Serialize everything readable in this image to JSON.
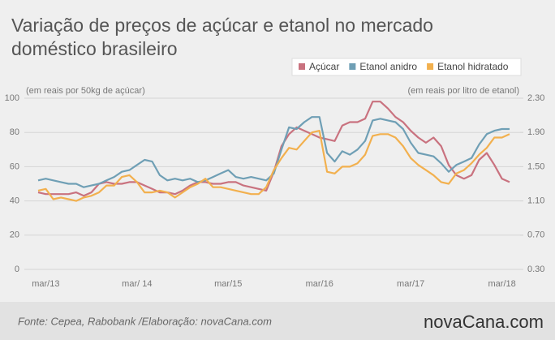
{
  "chart_data": {
    "type": "line",
    "title": [
      "Variação de preços de açúcar e etanol no mercado",
      "doméstico brasileiro"
    ],
    "ylabel": "(em reais por 50kg de açúcar)",
    "y2label": "(em reais por litro de etanol)",
    "source": "Fonte: Cepea, Rabobank /Elaboração: novaCana.com",
    "logo": "novaCana.com",
    "legend": "top-right",
    "grid": true,
    "categories": [
      null,
      "mar/13",
      null,
      null,
      null,
      null,
      null,
      null,
      null,
      null,
      null,
      null,
      null,
      "mar/ 14",
      null,
      null,
      null,
      null,
      null,
      null,
      null,
      null,
      null,
      null,
      null,
      "mar/15",
      null,
      null,
      null,
      null,
      null,
      null,
      null,
      null,
      null,
      null,
      null,
      "mar/16",
      null,
      null,
      null,
      null,
      null,
      null,
      null,
      null,
      null,
      null,
      null,
      "mar/17",
      null,
      null,
      null,
      null,
      null,
      null,
      null,
      null,
      null,
      null,
      null,
      "mar/18",
      null
    ],
    "ylim": [
      0,
      100
    ],
    "yticks": [
      0,
      20,
      40,
      60,
      80,
      100
    ],
    "y2lim": [
      0.3,
      2.3
    ],
    "y2ticks": [
      {
        "value": 0.3,
        "label": "0.30"
      },
      {
        "value": 0.7,
        "label": "0.70"
      },
      {
        "value": 1.1,
        "label": "1.10"
      },
      {
        "value": 1.5,
        "label": "1.50"
      },
      {
        "value": 1.9,
        "label": "1.90"
      },
      {
        "value": 2.3,
        "label": "2.30"
      }
    ],
    "series": [
      {
        "name": "Açúcar",
        "color": "#c9727f",
        "values": [
          45,
          44,
          44,
          44,
          44,
          45,
          43,
          45,
          50,
          51,
          50,
          50,
          51,
          51,
          49,
          47,
          45,
          45,
          44,
          46,
          49,
          51,
          51,
          50,
          50,
          51,
          51,
          49,
          48,
          47,
          46,
          57,
          72,
          79,
          83,
          81,
          79,
          77,
          76,
          75,
          84,
          86,
          86,
          88,
          98,
          98,
          94,
          89,
          86,
          81,
          77,
          74,
          77,
          72,
          61,
          55,
          53,
          55,
          64,
          68,
          61,
          53,
          51
        ]
      },
      {
        "name": "Etanol anidro",
        "color": "#6f9fb5",
        "axis": "y2",
        "values": [
          1.34,
          1.36,
          1.34,
          1.32,
          1.3,
          1.3,
          1.26,
          1.28,
          1.3,
          1.34,
          1.38,
          1.44,
          1.46,
          1.52,
          1.58,
          1.56,
          1.4,
          1.34,
          1.36,
          1.34,
          1.36,
          1.32,
          1.34,
          1.38,
          1.42,
          1.46,
          1.38,
          1.36,
          1.38,
          1.36,
          1.34,
          1.42,
          1.7,
          1.96,
          1.94,
          2.02,
          2.08,
          2.08,
          1.66,
          1.56,
          1.68,
          1.64,
          1.7,
          1.8,
          2.04,
          2.06,
          2.04,
          2.02,
          1.94,
          1.78,
          1.66,
          1.64,
          1.62,
          1.54,
          1.44,
          1.52,
          1.56,
          1.6,
          1.76,
          1.88,
          1.92,
          1.94,
          1.94
        ]
      },
      {
        "name": "Etanol hidratado",
        "color": "#f2b04e",
        "axis": "y2",
        "values": [
          1.22,
          1.24,
          1.12,
          1.14,
          1.12,
          1.1,
          1.14,
          1.16,
          1.2,
          1.28,
          1.28,
          1.38,
          1.4,
          1.32,
          1.2,
          1.2,
          1.22,
          1.2,
          1.14,
          1.2,
          1.26,
          1.3,
          1.36,
          1.26,
          1.26,
          1.24,
          1.22,
          1.2,
          1.18,
          1.18,
          1.26,
          1.46,
          1.6,
          1.72,
          1.7,
          1.8,
          1.9,
          1.92,
          1.44,
          1.42,
          1.5,
          1.5,
          1.54,
          1.64,
          1.86,
          1.88,
          1.88,
          1.84,
          1.74,
          1.6,
          1.52,
          1.46,
          1.4,
          1.32,
          1.3,
          1.42,
          1.46,
          1.54,
          1.64,
          1.72,
          1.84,
          1.84,
          1.88
        ]
      }
    ]
  }
}
